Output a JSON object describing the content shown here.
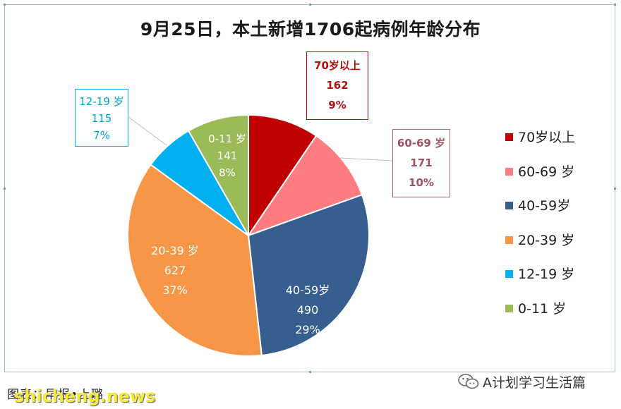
{
  "chart_data": {
    "type": "pie",
    "title": "9月25日，本土新增1706起病例年龄分布",
    "total": 1706,
    "slices": [
      {
        "name": "70岁以上",
        "legend": "70岁以上",
        "label": "70岁以上",
        "value": 162,
        "percent": "9%",
        "color": "#c00000",
        "text_color": "#b01010",
        "border_color": "#c00000"
      },
      {
        "name": "60-69 岁",
        "legend": "60-69 岁",
        "label": "60-69 岁",
        "value": 171,
        "percent": "10%",
        "color": "#ff7c80",
        "text_color": "#a15060",
        "border_color": "#c06070"
      },
      {
        "name": "40-59岁",
        "legend": "40-59岁",
        "label": "40-59岁",
        "value": 490,
        "percent": "29%",
        "color": "#365e8e",
        "text_color": "#ffffff"
      },
      {
        "name": "20-39 岁",
        "legend": "20-39 岁",
        "label": "20-39 岁",
        "value": 627,
        "percent": "37%",
        "color": "#f79646",
        "text_color": "#ffffff"
      },
      {
        "name": "12-19 岁",
        "legend": "12-19 岁",
        "label": "12-19 岁",
        "value": 115,
        "percent": "7%",
        "color": "#00b0f0",
        "text_color": "#00a0d8",
        "border_color": "#00b0f0"
      },
      {
        "name": "0-11 岁",
        "legend": "0-11 岁",
        "label": "0-11 岁",
        "value": 141,
        "percent": "8%",
        "color": "#9bbb59",
        "text_color": "#ffffff"
      }
    ],
    "legend_position": "right"
  },
  "caption": {
    "source": "图表：早报•上璐"
  },
  "watermark": {
    "site": "shicheng.news",
    "wechat_name": "A计划学习生活篇"
  },
  "colors": {
    "frame_border": "#9bbfcf"
  }
}
